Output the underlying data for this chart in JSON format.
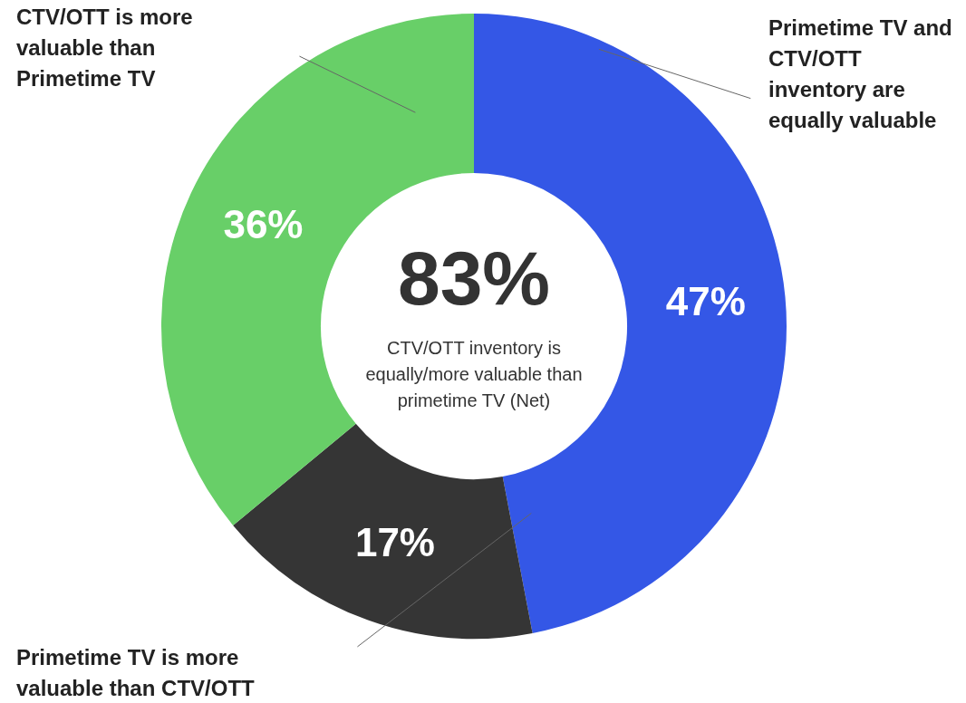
{
  "chart_data": {
    "type": "donut",
    "categories": [
      "Primetime TV and CTV/OTT inventory are equally valuable",
      "Primetime TV is more valuable than CTV/OTT",
      "CTV/OTT is more valuable than Primetime TV"
    ],
    "values": [
      47,
      17,
      36
    ],
    "colors": [
      "#3457e6",
      "#353535",
      "#68cf68"
    ],
    "value_labels": [
      "47%",
      "17%",
      "36%"
    ],
    "annotations": [
      "83%",
      "CTV/OTT inventory is equally/more valuable than primetime TV (Net)"
    ],
    "legend": false
  }
}
